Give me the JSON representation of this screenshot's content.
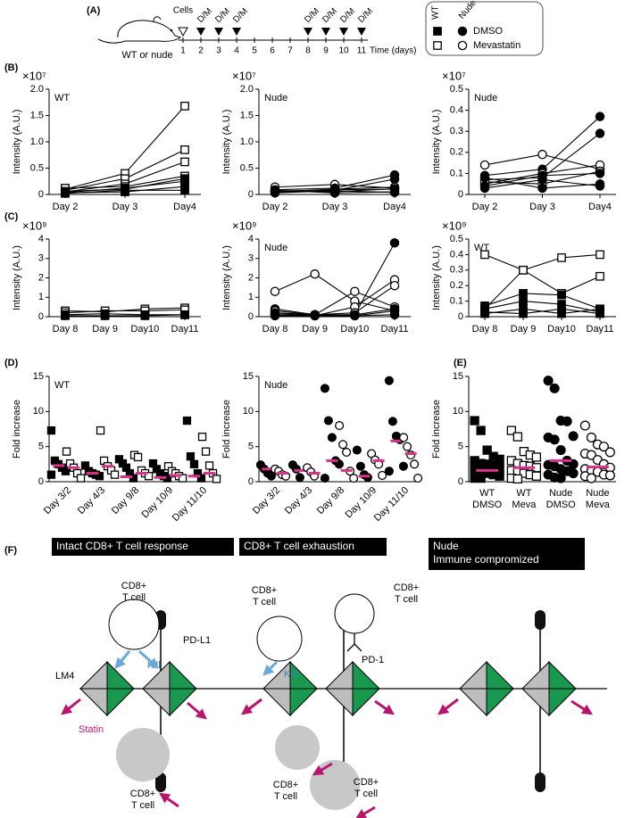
{
  "timeline": {
    "panel_label": "(A)",
    "animal_label": "WT or nude",
    "cells_label": "Cells",
    "cells_day": 1,
    "dosing": [
      {
        "day": 2,
        "label": "D/M"
      },
      {
        "day": 3,
        "label": "D/M"
      },
      {
        "day": 4,
        "label": "D/M"
      },
      {
        "day": 8,
        "label": "D/M"
      },
      {
        "day": 9,
        "label": "D/M"
      },
      {
        "day": 10,
        "label": "D/M"
      },
      {
        "day": 11,
        "label": "D/M"
      }
    ],
    "days": [
      1,
      2,
      3,
      4,
      5,
      6,
      7,
      8,
      9,
      10,
      11
    ],
    "axis_label": "Time (days)",
    "legend": {
      "columns": [
        "WT",
        "Nude"
      ],
      "rows": [
        "DMSO",
        "Mevastatin"
      ]
    }
  },
  "chart_data": [
    {
      "type": "line",
      "panel_label": "(B)",
      "multiplier": "×10⁷",
      "label": "WT",
      "ylabel": "Intensity (A.U.)",
      "categories": [
        "Day 2",
        "Day 3",
        "Day4"
      ],
      "ylim": [
        0,
        2
      ],
      "yticks": [
        0,
        0.5,
        {
          "value": 1,
          "label": "1.0"
        },
        1.5,
        {
          "value": 2,
          "label": "2.0"
        }
      ],
      "series": [
        {
          "marker": "square",
          "fill": "#ffffff",
          "values": [
            0.1,
            0.4,
            1.68
          ]
        },
        {
          "marker": "square",
          "fill": "#ffffff",
          "values": [
            0.08,
            0.3,
            0.85
          ]
        },
        {
          "marker": "square",
          "fill": "#ffffff",
          "values": [
            0.05,
            0.2,
            0.62
          ]
        },
        {
          "marker": "square",
          "fill": "#ffffff",
          "values": [
            0.12,
            0.15,
            0.35
          ]
        },
        {
          "marker": "square",
          "fill": "#000000",
          "values": [
            0.06,
            0.1,
            0.3
          ]
        },
        {
          "marker": "square",
          "fill": "#000000",
          "values": [
            0.04,
            0.12,
            0.25
          ]
        },
        {
          "marker": "square",
          "fill": "#000000",
          "values": [
            0.03,
            0.05,
            0.15
          ]
        },
        {
          "marker": "square",
          "fill": "#000000",
          "values": [
            0.02,
            0.08,
            0.08
          ]
        }
      ]
    },
    {
      "type": "line",
      "multiplier": "×10⁷",
      "label": "Nude",
      "ylabel": "Intensity (A.U.)",
      "categories": [
        "Day 2",
        "Day 3",
        "Day4"
      ],
      "ylim": [
        0,
        2
      ],
      "yticks": [
        0,
        0.5,
        {
          "value": 1,
          "label": "1.0"
        },
        1.5,
        {
          "value": 2,
          "label": "2.0"
        }
      ],
      "series": [
        {
          "marker": "circle",
          "fill": "#ffffff",
          "values": [
            0.14,
            0.19,
            0.12
          ]
        },
        {
          "marker": "circle",
          "fill": "#000000",
          "values": [
            0.09,
            0.12,
            0.37
          ]
        },
        {
          "marker": "circle",
          "fill": "#000000",
          "values": [
            0.07,
            0.08,
            0.29
          ]
        },
        {
          "marker": "circle",
          "fill": "#ffffff",
          "values": [
            0.05,
            0.1,
            0.14
          ]
        },
        {
          "marker": "circle",
          "fill": "#ffffff",
          "values": [
            0.06,
            0.05,
            0.11
          ]
        },
        {
          "marker": "circle",
          "fill": "#000000",
          "values": [
            0.04,
            0.09,
            0.1
          ]
        },
        {
          "marker": "circle",
          "fill": "#000000",
          "values": [
            0.08,
            0.03,
            0.05
          ]
        },
        {
          "marker": "circle",
          "fill": "#000000",
          "values": [
            0.03,
            0.07,
            0.04
          ]
        }
      ]
    },
    {
      "type": "line",
      "multiplier": "×10⁷",
      "label": "Nude",
      "ylabel": "Intensity (A.U.)",
      "categories": [
        "Day 2",
        "Day 3",
        "Day4"
      ],
      "ylim": [
        0,
        0.5
      ],
      "yticks": [
        0,
        0.1,
        0.2,
        0.3,
        0.4,
        0.5
      ],
      "series": [
        {
          "marker": "circle",
          "fill": "#ffffff",
          "values": [
            0.14,
            0.19,
            0.12
          ]
        },
        {
          "marker": "circle",
          "fill": "#000000",
          "values": [
            0.09,
            0.12,
            0.37
          ]
        },
        {
          "marker": "circle",
          "fill": "#000000",
          "values": [
            0.07,
            0.08,
            0.29
          ]
        },
        {
          "marker": "circle",
          "fill": "#ffffff",
          "values": [
            0.05,
            0.1,
            0.14
          ]
        },
        {
          "marker": "circle",
          "fill": "#ffffff",
          "values": [
            0.06,
            0.05,
            0.11
          ]
        },
        {
          "marker": "circle",
          "fill": "#000000",
          "values": [
            0.04,
            0.09,
            0.1
          ]
        },
        {
          "marker": "circle",
          "fill": "#000000",
          "values": [
            0.08,
            0.03,
            0.05
          ]
        },
        {
          "marker": "circle",
          "fill": "#000000",
          "values": [
            0.03,
            0.07,
            0.04
          ]
        }
      ]
    },
    {
      "type": "line",
      "panel_label": "(C)",
      "multiplier": "×10⁹",
      "ylabel": "Intensity (A.U.)",
      "categories": [
        "Day 8",
        "Day 9",
        "Day10",
        "Day11"
      ],
      "ylim": [
        0,
        4
      ],
      "yticks": [
        0,
        1,
        2,
        3,
        4
      ],
      "series": [
        {
          "marker": "square",
          "fill": "#ffffff",
          "values": [
            0.3,
            0.25,
            0.4,
            0.45
          ]
        },
        {
          "marker": "square",
          "fill": "#ffffff",
          "values": [
            0.2,
            0.3,
            0.3,
            0.35
          ]
        },
        {
          "marker": "square",
          "fill": "#000000",
          "values": [
            0.1,
            0.15,
            0.1,
            0.1
          ]
        },
        {
          "marker": "square",
          "fill": "#000000",
          "values": [
            0.05,
            0.05,
            0.05,
            0.1
          ]
        }
      ]
    },
    {
      "type": "line",
      "multiplier": "×10⁹",
      "label": "Nude",
      "ylabel": "Intensity (A.U.)",
      "categories": [
        "Day 8",
        "Day 9",
        "Day10",
        "Day11"
      ],
      "ylim": [
        0,
        4
      ],
      "yticks": [
        0,
        1,
        2,
        3,
        4
      ],
      "series": [
        {
          "marker": "circle",
          "fill": "#ffffff",
          "values": [
            1.3,
            2.2,
            0.8,
            0.3
          ]
        },
        {
          "marker": "circle",
          "fill": "#ffffff",
          "values": [
            0.2,
            0.1,
            1.3,
            0.5
          ]
        },
        {
          "marker": "circle",
          "fill": "#000000",
          "values": [
            0.4,
            0.1,
            0.1,
            3.8
          ]
        },
        {
          "marker": "circle",
          "fill": "#ffffff",
          "values": [
            0.1,
            0.05,
            0.5,
            1.9
          ]
        },
        {
          "marker": "circle",
          "fill": "#ffffff",
          "values": [
            0.3,
            0.1,
            0.2,
            1.6
          ]
        },
        {
          "marker": "circle",
          "fill": "#000000",
          "values": [
            0.2,
            0.05,
            0.1,
            0.4
          ]
        },
        {
          "marker": "circle",
          "fill": "#000000",
          "values": [
            0.1,
            0.1,
            0.05,
            0.3
          ]
        },
        {
          "marker": "circle",
          "fill": "#000000",
          "values": [
            0.05,
            0.05,
            0.05,
            0.1
          ]
        }
      ]
    },
    {
      "type": "line",
      "multiplier": "×10⁹",
      "label": "WT",
      "ylabel": "Intensity (A.U.)",
      "categories": [
        "Day 8",
        "Day 9",
        "Day10",
        "Day11"
      ],
      "ylim": [
        0,
        0.5
      ],
      "yticks": [
        0,
        0.1,
        0.2,
        0.3,
        0.4,
        0.5
      ],
      "series": [
        {
          "marker": "square",
          "fill": "#ffffff",
          "values": [
            0.4,
            0.3,
            0.38,
            0.4
          ]
        },
        {
          "marker": "square",
          "fill": "#ffffff",
          "values": [
            0.05,
            0.3,
            0.15,
            0.26
          ]
        },
        {
          "marker": "square",
          "fill": "#000000",
          "values": [
            0.07,
            0.15,
            0.14,
            0.05
          ]
        },
        {
          "marker": "square",
          "fill": "#000000",
          "values": [
            0.05,
            0.1,
            0.08,
            0.03
          ]
        },
        {
          "marker": "square",
          "fill": "#000000",
          "values": [
            0.02,
            0.05,
            0.02,
            0.05
          ]
        },
        {
          "marker": "square",
          "fill": "#000000",
          "values": [
            0.03,
            0.02,
            0.05,
            0.02
          ]
        }
      ]
    },
    {
      "type": "dot",
      "panel_label": "(D)",
      "label": "WT",
      "ylabel": "Fold increase",
      "median_color": "#d6338a",
      "categories": [
        "Day 3/2",
        "Day 4/3",
        "Day 9/8",
        "Day 10/9",
        "Day 11/10"
      ],
      "ylim": [
        0,
        15
      ],
      "yticks": [
        0,
        5,
        10,
        15
      ],
      "groups": [
        {
          "marker": "square",
          "fill": "#000000",
          "values": [
            [
              7.3,
              3,
              2.5,
              2,
              1.5,
              1
            ],
            [
              2.3,
              1.5,
              1.2,
              1,
              0.8
            ],
            [
              3.2,
              2.6,
              2,
              1.2,
              0.5
            ],
            [
              2.6,
              1.8,
              1.2,
              0.8,
              0.5
            ],
            [
              8.7,
              3.6,
              2.5,
              1.2,
              0.5
            ]
          ],
          "medians": [
            2.3,
            1.2,
            0.7,
            0.6,
            0.8
          ]
        },
        {
          "marker": "square",
          "fill": "#ffffff",
          "values": [
            [
              4.3,
              2.6,
              2,
              1.2,
              0.5
            ],
            [
              7.3,
              3,
              2.2,
              1.6,
              1
            ],
            [
              3.8,
              3.5,
              1.6,
              1.2,
              0.8
            ],
            [
              2.2,
              1.5,
              1.2,
              0.8,
              0.5
            ],
            [
              6.4,
              4.3,
              2.3,
              1.2,
              0.4
            ]
          ],
          "medians": [
            2,
            2.2,
            1.2,
            0.9,
            1.2
          ]
        }
      ]
    },
    {
      "type": "dot",
      "label": "Nude",
      "ylabel": "Fold increase",
      "median_color": "#d6338a",
      "categories": [
        "Day 3/2",
        "Day 4/3",
        "Day 9/8",
        "Day 10/9",
        "Day 11/10"
      ],
      "ylim": [
        0,
        15
      ],
      "yticks": [
        0,
        5,
        10,
        15
      ],
      "groups": [
        {
          "marker": "circle",
          "fill": "#000000",
          "values": [
            [
              2.4,
              1.8,
              1.2,
              0.8
            ],
            [
              2.4,
              1.8,
              0.6
            ],
            [
              13.3,
              8.7,
              6.3,
              3,
              2.5,
              0.5
            ],
            [
              4.5,
              2.2,
              1,
              0.6
            ],
            [
              14.4,
              8.6,
              6.5,
              6,
              2.2,
              1.5
            ]
          ],
          "medians": [
            1.8,
            1.6,
            3,
            0.8,
            5.8
          ]
        },
        {
          "marker": "circle",
          "fill": "#ffffff",
          "values": [
            [
              1.8,
              1.5,
              1,
              0.8
            ],
            [
              2,
              1.4,
              0.8
            ],
            [
              8,
              5.3,
              4.2,
              1.5,
              0.5
            ],
            [
              4,
              3.1,
              2.5,
              0.9
            ],
            [
              6.3,
              5,
              3.8,
              2.5,
              0.5
            ]
          ],
          "medians": [
            1.2,
            1.2,
            1.6,
            3,
            4
          ]
        }
      ]
    },
    {
      "type": "dot",
      "panel_label": "(E)",
      "ylabel": "Fold increase",
      "median_color": "#d6338a",
      "categories": [
        [
          "WT",
          "DMSO"
        ],
        [
          "WT",
          "Meva"
        ],
        [
          "Nude",
          "DMSO"
        ],
        [
          "Nude",
          "Meva"
        ]
      ],
      "ylim": [
        0,
        15
      ],
      "yticks": [
        0,
        5,
        10,
        15
      ],
      "markers": [
        {
          "marker": "square",
          "fill": "#000000"
        },
        {
          "marker": "square",
          "fill": "#ffffff"
        },
        {
          "marker": "circle",
          "fill": "#000000"
        },
        {
          "marker": "circle",
          "fill": "#ffffff"
        }
      ],
      "values": [
        [
          8.7,
          7.3,
          4.5,
          3.6,
          3.2,
          3,
          2.6,
          2.5,
          2.3,
          2,
          1.8,
          1.5,
          1.2,
          1,
          0.8,
          0.5,
          0.5
        ],
        [
          7.3,
          6.4,
          4.3,
          3.8,
          3.5,
          3,
          2.6,
          2.3,
          2.2,
          2,
          1.6,
          1.5,
          1.2,
          1,
          0.8,
          0.5,
          0.4
        ],
        [
          14.4,
          13.3,
          8.7,
          8.6,
          6.5,
          6.3,
          6,
          4.5,
          3,
          2.5,
          2.4,
          2.2,
          1.8,
          1.5,
          1.2,
          1,
          0.6,
          0.5
        ],
        [
          8,
          6.3,
          5.3,
          5,
          4.2,
          4,
          3.8,
          3.1,
          2.5,
          2,
          1.8,
          1.5,
          1.4,
          1,
          0.9,
          0.8,
          0.5
        ]
      ],
      "medians": [
        1.6,
        2,
        3,
        2.1
      ]
    }
  ],
  "diagram": {
    "panel_label": "(F)",
    "titles": [
      [
        "Intact CD8+ T cell response"
      ],
      [
        "CD8+ T cell exhaustion"
      ],
      [
        "Nude",
        "Immune compromized"
      ]
    ],
    "cell_labels": [
      [
        "CD8+",
        "T cell"
      ],
      [
        "CD8+",
        "T cell"
      ],
      [
        "CD8+",
        "T cell"
      ],
      [
        "CD8+",
        "T cell"
      ],
      [
        "CD8+",
        "T cell"
      ],
      [
        "CD8+",
        "T cell"
      ]
    ],
    "pd_l1": "PD-L1",
    "pd_1": "PD-1",
    "lm4": "LM4",
    "kill_labels": [
      "Kill",
      "Kill"
    ],
    "statin": "Statin"
  }
}
